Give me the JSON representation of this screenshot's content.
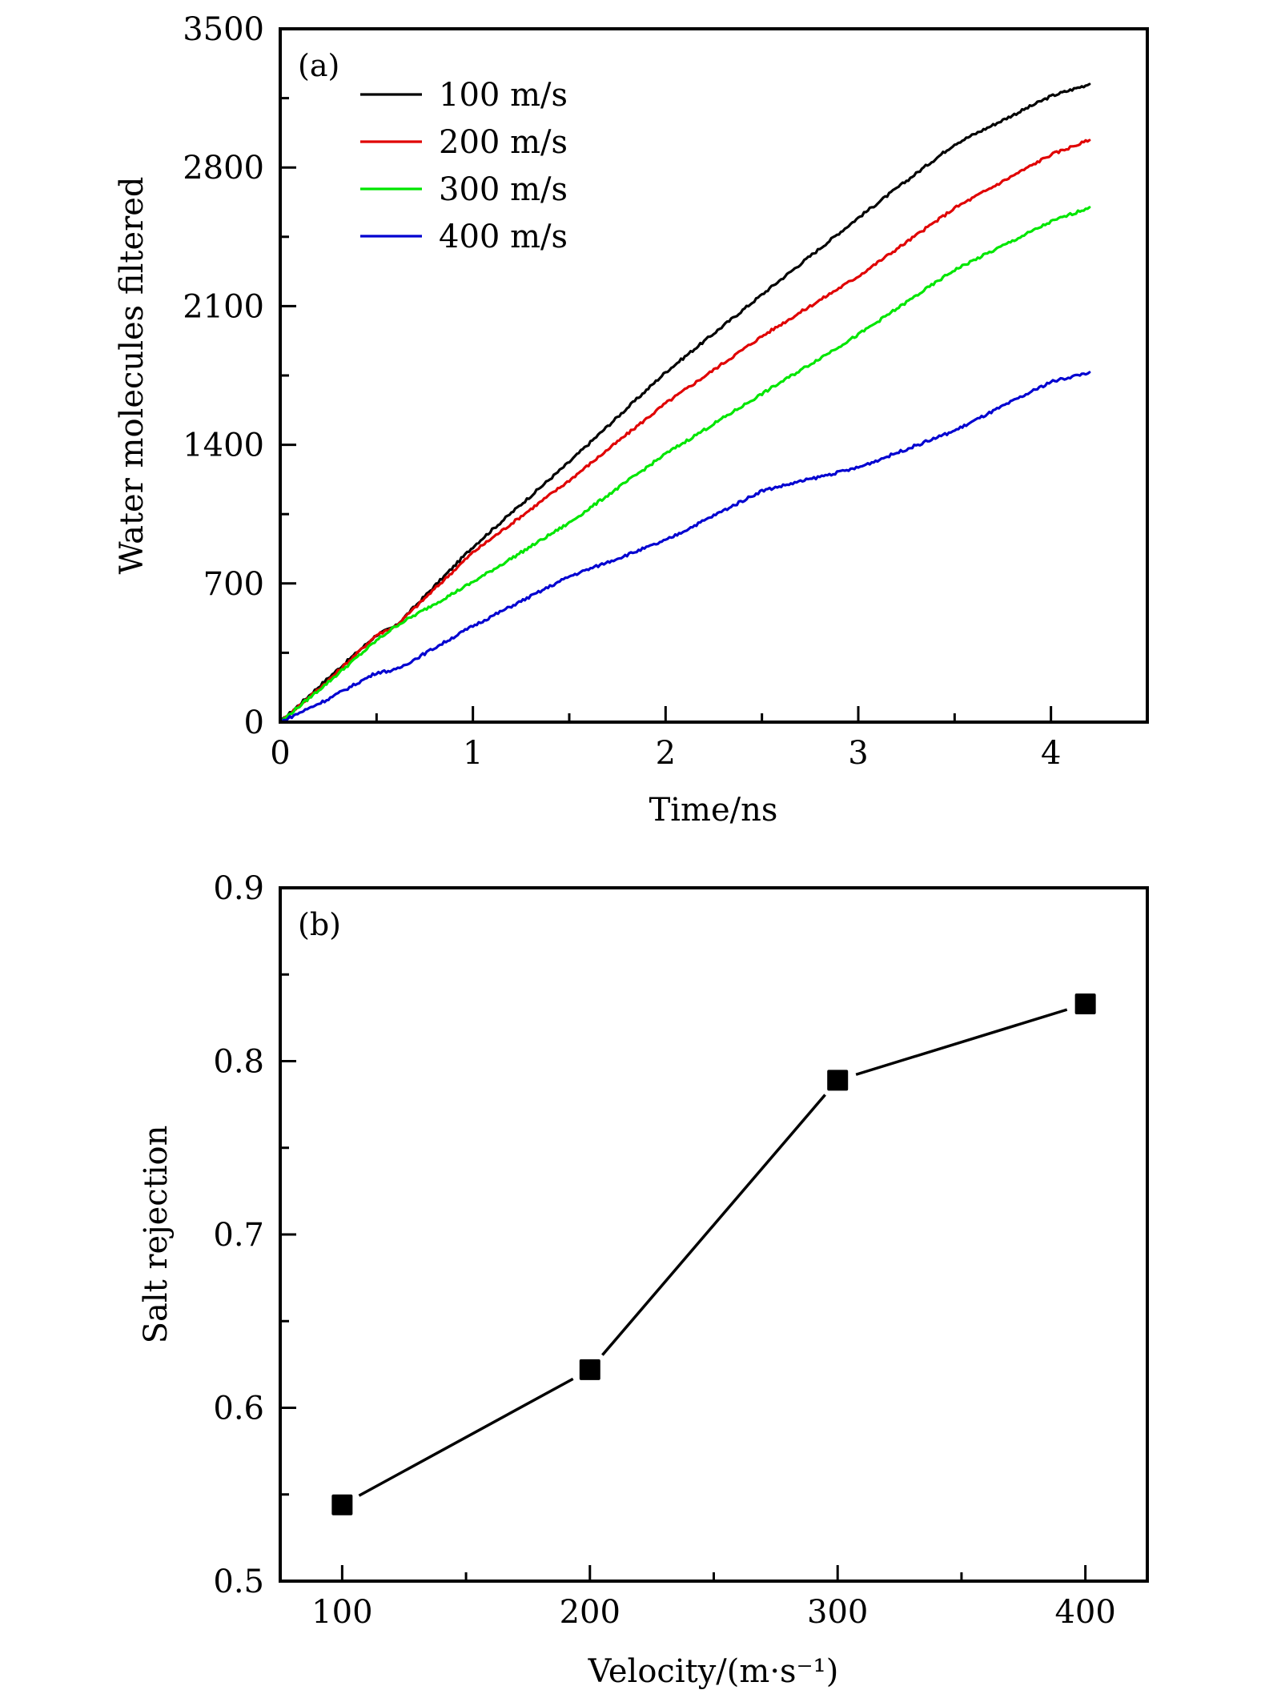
{
  "chart_data": [
    {
      "panel": "(a)",
      "type": "line",
      "title": "",
      "xlabel": "Time/ns",
      "ylabel": "Water molecules filtered",
      "xlim": [
        0,
        4.5
      ],
      "ylim": [
        0,
        3500
      ],
      "x_ticks": [
        0,
        1,
        2,
        3,
        4
      ],
      "x_tick_labels": [
        "0",
        "1",
        "2",
        "3",
        "4"
      ],
      "x_minor_ticks": [
        0.5,
        1.5,
        2.5,
        3.5
      ],
      "y_ticks": [
        0,
        700,
        1400,
        2100,
        2800,
        3500
      ],
      "y_tick_labels": [
        "0",
        "700",
        "1400",
        "2100",
        "2800",
        "3500"
      ],
      "y_minor_ticks": [
        350,
        1050,
        1750,
        2450,
        3150
      ],
      "grid": false,
      "legend": "top-left",
      "x": [
        0,
        0.25,
        0.5,
        0.6,
        1.0,
        1.5,
        2.0,
        2.5,
        3.0,
        3.5,
        4.0,
        4.2
      ],
      "series": [
        {
          "name": "100 m/s",
          "color": "#000000",
          "values": [
            0,
            223,
            440,
            485,
            885,
            1313,
            1766,
            2158,
            2546,
            2918,
            3160,
            3221
          ]
        },
        {
          "name": "200 m/s",
          "color": "#e00000",
          "values": [
            0,
            210,
            440,
            485,
            857,
            1220,
            1609,
            1948,
            2251,
            2595,
            2865,
            2938
          ]
        },
        {
          "name": "300 m/s",
          "color": "#00e600",
          "values": [
            0,
            202,
            412,
            485,
            707,
            1006,
            1354,
            1657,
            1956,
            2283,
            2526,
            2599
          ]
        },
        {
          "name": "400 m/s",
          "color": "#0000d0",
          "values": [
            0,
            117,
            250,
            263,
            485,
            735,
            917,
            1168,
            1285,
            1471,
            1718,
            1766
          ]
        }
      ]
    },
    {
      "panel": "(b)",
      "type": "line",
      "title": "",
      "xlabel": "Velocity/(m·s⁻¹)",
      "ylabel": "Salt rejection",
      "xlim": [
        75,
        425
      ],
      "ylim": [
        0.5,
        0.9
      ],
      "x_ticks": [
        100,
        200,
        300,
        400
      ],
      "x_tick_labels": [
        "100",
        "200",
        "300",
        "400"
      ],
      "x_minor_ticks": [
        150,
        250,
        350
      ],
      "y_ticks": [
        0.5,
        0.6,
        0.7,
        0.8,
        0.9
      ],
      "y_tick_labels": [
        "0.5",
        "0.6",
        "0.7",
        "0.8",
        "0.9"
      ],
      "y_minor_ticks": [
        0.55,
        0.65,
        0.75,
        0.85
      ],
      "grid": false,
      "marker": "square",
      "x": [
        100,
        200,
        300,
        400
      ],
      "series": [
        {
          "name": "Salt rejection",
          "color": "#000000",
          "values": [
            0.544,
            0.622,
            0.789,
            0.833
          ]
        }
      ]
    }
  ]
}
